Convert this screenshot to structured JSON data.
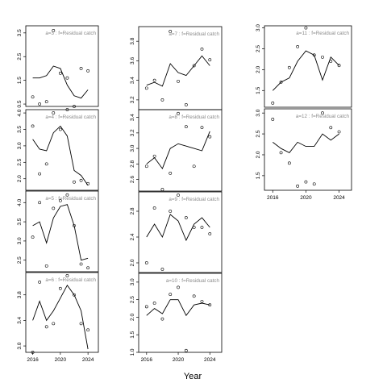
{
  "figure": {
    "xlabel": "Year"
  },
  "chart_data": [
    {
      "type": "line",
      "label": "a=3  :  f=Residual catch",
      "ylim": [
        0.4,
        3.8
      ],
      "yticks": [
        0.5,
        1.5,
        2.5,
        3.5
      ],
      "xlim": [
        2015,
        2025.5
      ],
      "xticks": [],
      "line": {
        "x": [
          2016,
          2017,
          2018,
          2019,
          2020,
          2021,
          2022,
          2023,
          2024
        ],
        "y": [
          1.6,
          1.6,
          1.7,
          2.1,
          2.0,
          1.3,
          0.85,
          0.75,
          1.1
        ]
      },
      "points": {
        "x": [
          2016,
          2017,
          2018,
          2019,
          2020,
          2021,
          2022,
          2023,
          2024
        ],
        "y": [
          0.8,
          0.5,
          0.6,
          3.6,
          1.8,
          1.6,
          0.4,
          2.0,
          1.9
        ]
      }
    },
    {
      "type": "line",
      "label": "a=7  :  f=Residual catch",
      "ylim": [
        3.1,
        3.95
      ],
      "yticks": [
        3.2,
        3.4,
        3.6,
        3.8
      ],
      "xlim": [
        2015,
        2025.5
      ],
      "xticks": [],
      "line": {
        "x": [
          2016,
          2017,
          2018,
          2019,
          2020,
          2021,
          2022,
          2023,
          2024
        ],
        "y": [
          3.35,
          3.38,
          3.34,
          3.57,
          3.48,
          3.45,
          3.55,
          3.65,
          3.55
        ]
      },
      "points": {
        "x": [
          2016,
          2017,
          2018,
          2019,
          2020,
          2021,
          2022,
          2023,
          2024
        ],
        "y": [
          3.32,
          3.4,
          3.2,
          3.9,
          3.39,
          3.15,
          3.55,
          3.72,
          3.61
        ]
      }
    },
    {
      "type": "line",
      "label": "a=11  :  f=Residual catch",
      "ylim": [
        1.1,
        3.05
      ],
      "yticks": [
        1.5,
        2.0,
        2.5,
        3.0
      ],
      "xlim": [
        2015,
        2025.5
      ],
      "xticks": [],
      "line": {
        "x": [
          2016,
          2017,
          2018,
          2019,
          2020,
          2021,
          2022,
          2023,
          2024
        ],
        "y": [
          1.5,
          1.7,
          1.8,
          2.2,
          2.45,
          2.35,
          1.75,
          2.3,
          2.1
        ]
      },
      "points": {
        "x": [
          2016,
          2017,
          2018,
          2019,
          2020,
          2021,
          2022,
          2023,
          2024
        ],
        "y": [
          1.2,
          1.7,
          2.05,
          2.55,
          3.0,
          2.35,
          2.3,
          2.2,
          2.1
        ]
      }
    },
    {
      "type": "line",
      "label": "a=4  :  f=Residual catch",
      "ylim": [
        1.65,
        4.1
      ],
      "yticks": [
        2.0,
        2.5,
        3.0,
        3.5,
        4.0
      ],
      "xlim": [
        2015,
        2025.5
      ],
      "xticks": [],
      "line": {
        "x": [
          2016,
          2017,
          2018,
          2019,
          2020,
          2021,
          2022,
          2023,
          2024
        ],
        "y": [
          3.2,
          2.9,
          2.85,
          3.4,
          3.6,
          3.3,
          2.25,
          2.1,
          1.8
        ]
      },
      "points": {
        "x": [
          2016,
          2017,
          2018,
          2019,
          2020,
          2021,
          2022,
          2023,
          2024
        ],
        "y": [
          3.6,
          2.15,
          2.45,
          4.0,
          3.5,
          4.1,
          1.9,
          1.95,
          1.85
        ]
      }
    },
    {
      "type": "line",
      "label": "a=8  :  f=Residual catch",
      "ylim": [
        2.45,
        3.5
      ],
      "yticks": [
        2.6,
        2.8,
        3.0,
        3.2,
        3.4
      ],
      "xlim": [
        2015,
        2025.5
      ],
      "xticks": [],
      "line": {
        "x": [
          2016,
          2017,
          2018,
          2019,
          2020,
          2021,
          2022,
          2023,
          2024
        ],
        "y": [
          2.8,
          2.88,
          2.74,
          3.0,
          3.06,
          3.03,
          3.0,
          2.97,
          3.22
        ]
      },
      "points": {
        "x": [
          2016,
          2017,
          2018,
          2019,
          2020,
          2021,
          2022,
          2023,
          2024
        ],
        "y": [
          2.77,
          2.9,
          2.47,
          2.68,
          3.45,
          3.28,
          2.77,
          3.27,
          3.15
        ]
      }
    },
    {
      "type": "line",
      "label": "a=12  :  f=Residual catch",
      "ylim": [
        1.15,
        3.1
      ],
      "yticks": [
        1.5,
        2.0,
        2.5,
        3.0
      ],
      "xlim": [
        2015,
        2025.5
      ],
      "xticks": [
        2016,
        2020,
        2024
      ],
      "line": {
        "x": [
          2016,
          2017,
          2018,
          2019,
          2020,
          2021,
          2022,
          2023,
          2024
        ],
        "y": [
          2.3,
          2.15,
          2.05,
          2.3,
          2.2,
          2.2,
          2.5,
          2.35,
          2.5
        ]
      },
      "points": {
        "x": [
          2016,
          2017,
          2018,
          2019,
          2020,
          2021,
          2022,
          2023,
          2024
        ],
        "y": [
          2.85,
          2.05,
          1.8,
          1.25,
          1.35,
          1.3,
          3.0,
          2.65,
          2.55
        ]
      }
    },
    {
      "type": "line",
      "label": "a=5  :  f=Residual catch",
      "ylim": [
        2.2,
        4.3
      ],
      "yticks": [
        2.5,
        3.0,
        3.5,
        4.0
      ],
      "xlim": [
        2015,
        2025.5
      ],
      "xticks": [],
      "line": {
        "x": [
          2016,
          2017,
          2018,
          2019,
          2020,
          2021,
          2022,
          2023,
          2024
        ],
        "y": [
          3.4,
          3.5,
          2.95,
          3.6,
          3.9,
          3.95,
          3.4,
          2.5,
          2.55
        ]
      },
      "points": {
        "x": [
          2016,
          2017,
          2018,
          2019,
          2020,
          2021,
          2022,
          2023,
          2024
        ],
        "y": [
          3.1,
          4.0,
          2.35,
          3.85,
          4.05,
          4.2,
          3.4,
          2.4,
          2.3
        ]
      }
    },
    {
      "type": "line",
      "label": "a=9  :  f=Residual catch",
      "ylim": [
        1.85,
        3.1
      ],
      "yticks": [
        2.0,
        2.4,
        2.8
      ],
      "xlim": [
        2015,
        2025.5
      ],
      "xticks": [],
      "line": {
        "x": [
          2016,
          2017,
          2018,
          2019,
          2020,
          2021,
          2022,
          2023,
          2024
        ],
        "y": [
          2.4,
          2.6,
          2.4,
          2.75,
          2.65,
          2.35,
          2.6,
          2.7,
          2.55
        ]
      },
      "points": {
        "x": [
          2016,
          2017,
          2018,
          2019,
          2020,
          2021,
          2022,
          2023,
          2024
        ],
        "y": [
          2.0,
          2.85,
          1.9,
          2.8,
          3.05,
          2.7,
          2.55,
          2.55,
          2.45
        ]
      }
    },
    {
      "type": "line",
      "label": "a=6  :  f=Residual catch",
      "ylim": [
        2.9,
        4.15
      ],
      "yticks": [
        3.0,
        3.4,
        3.8
      ],
      "xlim": [
        2015,
        2025.5
      ],
      "xticks": [
        2016,
        2020,
        2024
      ],
      "line": {
        "x": [
          2016,
          2017,
          2018,
          2019,
          2020,
          2021,
          2022,
          2023,
          2024
        ],
        "y": [
          3.4,
          3.7,
          3.4,
          3.55,
          3.75,
          3.95,
          3.8,
          3.55,
          2.95
        ]
      },
      "points": {
        "x": [
          2016,
          2017,
          2018,
          2019,
          2020,
          2021,
          2022,
          2023,
          2024
        ],
        "y": [
          2.9,
          4.0,
          3.3,
          3.35,
          3.9,
          4.1,
          3.8,
          3.35,
          3.25
        ]
      }
    },
    {
      "type": "line",
      "label": "a=10  :  f=Residual catch",
      "ylim": [
        1.0,
        3.25
      ],
      "yticks": [
        1.0,
        1.5,
        2.0,
        2.5,
        3.0
      ],
      "xlim": [
        2015,
        2025.5
      ],
      "xticks": [
        2016,
        2020,
        2024
      ],
      "line": {
        "x": [
          2016,
          2017,
          2018,
          2019,
          2020,
          2021,
          2022,
          2023,
          2024
        ],
        "y": [
          2.05,
          2.25,
          2.1,
          2.5,
          2.5,
          2.05,
          2.35,
          2.4,
          2.35
        ]
      },
      "points": {
        "x": [
          2016,
          2017,
          2018,
          2019,
          2020,
          2021,
          2022,
          2023,
          2024
        ],
        "y": [
          2.3,
          2.4,
          1.95,
          2.65,
          2.85,
          1.05,
          2.6,
          2.45,
          2.35
        ]
      }
    }
  ]
}
